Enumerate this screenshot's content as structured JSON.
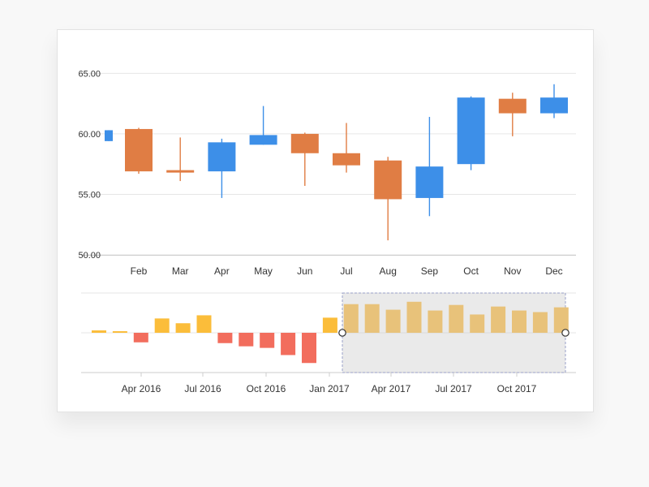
{
  "chart_data": [
    {
      "type": "candlestick",
      "title": "",
      "categories": [
        "",
        "Feb",
        "Mar",
        "Apr",
        "May",
        "Jun",
        "Jul",
        "Aug",
        "Sep",
        "Oct",
        "Nov",
        "Dec"
      ],
      "y_ticks": [
        "50.00",
        "55.00",
        "60.00",
        "65.00"
      ],
      "ylim": [
        50,
        66.5
      ],
      "grid": true,
      "colors": {
        "up": "#3d8fe8",
        "down": "#e07d44"
      },
      "candles": [
        {
          "label": "",
          "open": 59.4,
          "close": 60.3,
          "high": 60.3,
          "low": 59.4
        },
        {
          "label": "Feb",
          "open": 60.4,
          "close": 56.9,
          "high": 60.5,
          "low": 56.7
        },
        {
          "label": "Mar",
          "open": 57.0,
          "close": 56.8,
          "high": 59.7,
          "low": 56.1
        },
        {
          "label": "Apr",
          "open": 56.9,
          "close": 59.3,
          "high": 59.6,
          "low": 54.7
        },
        {
          "label": "May",
          "open": 59.1,
          "close": 59.9,
          "high": 62.3,
          "low": 59.1
        },
        {
          "label": "Jun",
          "open": 60.0,
          "close": 58.4,
          "high": 60.1,
          "low": 55.7
        },
        {
          "label": "Jul",
          "open": 58.4,
          "close": 57.4,
          "high": 60.9,
          "low": 56.8
        },
        {
          "label": "Aug",
          "open": 57.8,
          "close": 54.6,
          "high": 58.1,
          "low": 51.2
        },
        {
          "label": "Sep",
          "open": 54.7,
          "close": 57.3,
          "high": 61.4,
          "low": 53.2
        },
        {
          "label": "Oct",
          "open": 57.5,
          "close": 63.0,
          "high": 63.1,
          "low": 57.0
        },
        {
          "label": "Nov",
          "open": 62.9,
          "close": 61.7,
          "high": 63.4,
          "low": 59.8
        },
        {
          "label": "Dec",
          "open": 61.7,
          "close": 63.0,
          "high": 64.1,
          "low": 61.3
        }
      ]
    },
    {
      "type": "bar",
      "title": "",
      "x_ticks": [
        "Apr 2016",
        "Jul 2016",
        "Oct 2016",
        "Jan 2017",
        "Apr 2017",
        "Jul 2017",
        "Oct 2017"
      ],
      "values": [
        0.3,
        0.2,
        -1.2,
        1.8,
        1.2,
        2.2,
        -1.3,
        -1.7,
        -1.9,
        -2.8,
        -3.8,
        1.9,
        3.6,
        3.6,
        2.9,
        3.9,
        2.8,
        3.5,
        2.3,
        3.3,
        2.8,
        2.6,
        3.2
      ],
      "ylim": [
        -5,
        5
      ],
      "colors": {
        "positive": "#fbbd3a",
        "negative": "#f26d5d",
        "selected": "#e8c27a"
      },
      "selection": {
        "start_index": 12,
        "end_index": 22
      },
      "grid": true
    }
  ]
}
